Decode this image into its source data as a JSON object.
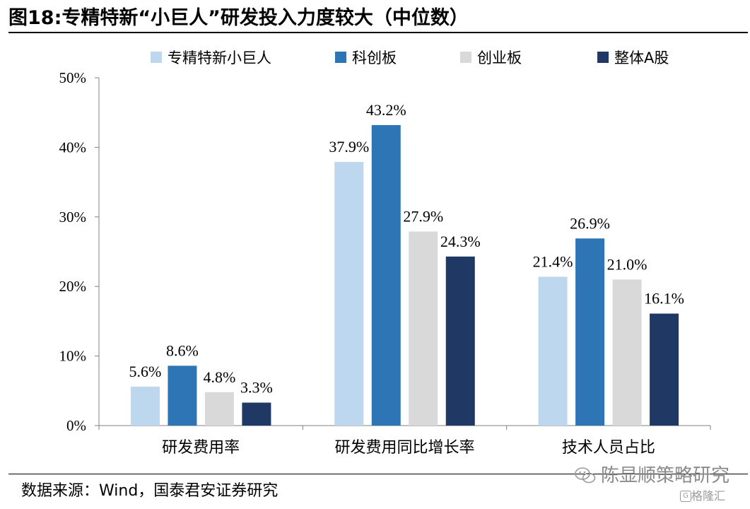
{
  "title": "图18:专精特新“小巨人”研发投入力度较大（中位数）",
  "source": "数据来源：Wind，国泰君安证券研究",
  "watermark": {
    "account": "陈显顺策略研究",
    "brand": "格隆汇"
  },
  "colors": {
    "series": [
      "#BDD7EE",
      "#2E75B6",
      "#D9D9D9",
      "#203864"
    ]
  },
  "chart_data": {
    "type": "bar",
    "categories": [
      "研发费用率",
      "研发费用同比增长率",
      "技术人员占比"
    ],
    "series": [
      {
        "name": "专精特新小巨人",
        "values": [
          5.6,
          37.9,
          21.4
        ]
      },
      {
        "name": "科创板",
        "values": [
          8.6,
          43.2,
          26.9
        ]
      },
      {
        "name": "创业板",
        "values": [
          4.8,
          27.9,
          21.0
        ]
      },
      {
        "name": "整体A股",
        "values": [
          3.3,
          24.3,
          16.1
        ]
      }
    ],
    "data_labels": [
      [
        "5.6%",
        "37.9%",
        "21.4%"
      ],
      [
        "8.6%",
        "43.2%",
        "26.9%"
      ],
      [
        "4.8%",
        "27.9%",
        "21.0%"
      ],
      [
        "3.3%",
        "24.3%",
        "16.1%"
      ]
    ],
    "yticks": [
      0,
      10,
      20,
      30,
      40,
      50
    ],
    "ytick_labels": [
      "0%",
      "10%",
      "20%",
      "30%",
      "40%",
      "50%"
    ],
    "ylim": [
      0,
      50
    ],
    "legend_position": "top",
    "grid": false
  }
}
